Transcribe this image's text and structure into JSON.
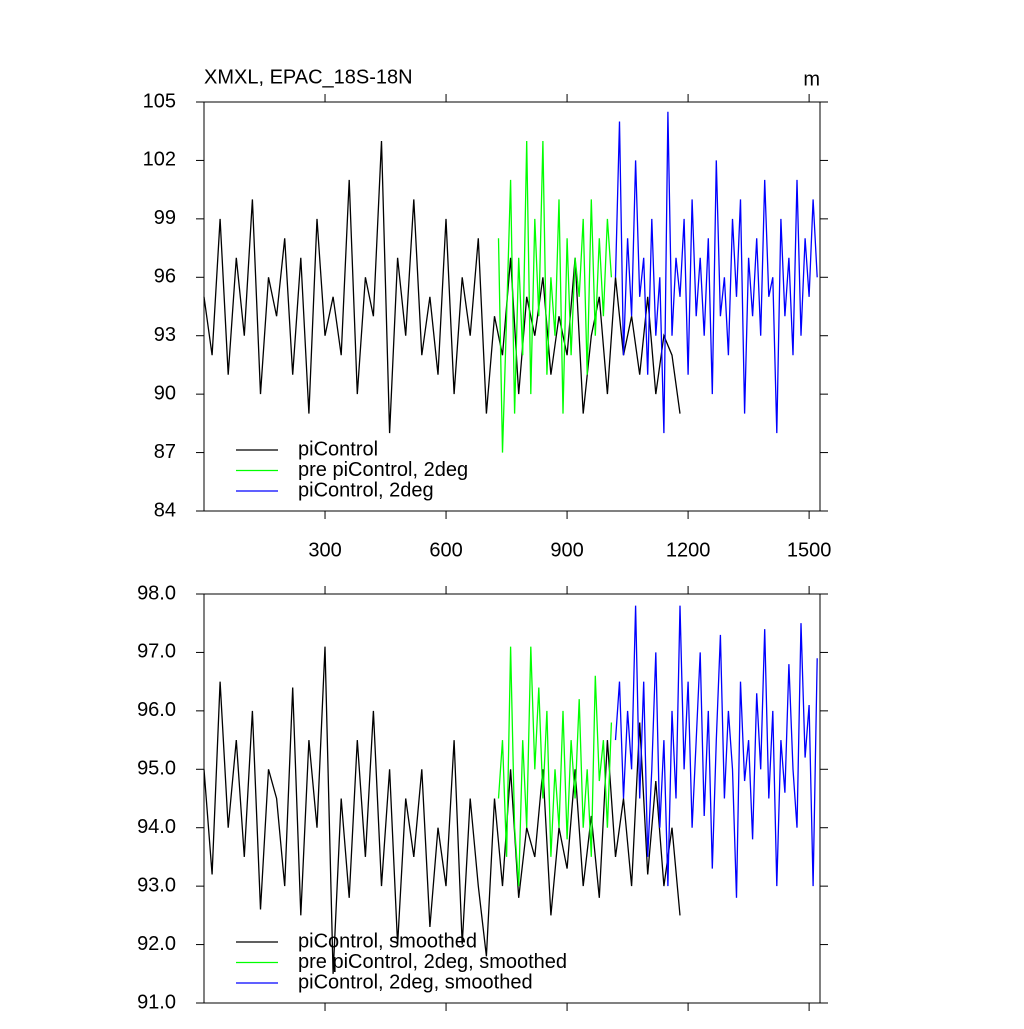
{
  "chart_data": [
    {
      "type": "line",
      "title": "XMXL, EPAC_18S-18N",
      "units_label": "m",
      "xlim": [
        0,
        1527
      ],
      "xticks": [
        300,
        600,
        900,
        1200,
        1500
      ],
      "ylim": [
        84,
        105
      ],
      "yticks": [
        84,
        87,
        90,
        93,
        96,
        99,
        102,
        105
      ],
      "series": [
        {
          "name": "piControl",
          "color": "#000000",
          "x": [
            0,
            20,
            40,
            60,
            80,
            100,
            120,
            140,
            160,
            180,
            200,
            220,
            240,
            260,
            280,
            300,
            320,
            340,
            360,
            380,
            400,
            420,
            440,
            460,
            480,
            500,
            520,
            540,
            560,
            580,
            600,
            620,
            640,
            660,
            680,
            700,
            720,
            740,
            760,
            780,
            800,
            820,
            840,
            860,
            880,
            900,
            920,
            940,
            960,
            980,
            1000,
            1020,
            1040,
            1060,
            1080,
            1100,
            1120,
            1140,
            1160,
            1180
          ],
          "values": [
            95,
            92,
            99,
            91,
            97,
            93,
            100,
            90,
            96,
            94,
            98,
            91,
            97,
            89,
            99,
            93,
            95,
            92,
            101,
            90,
            96,
            94,
            103,
            88,
            97,
            93,
            100,
            92,
            95,
            91,
            99,
            90,
            96,
            93,
            98,
            89,
            94,
            92,
            97,
            90,
            95,
            93,
            96,
            91,
            94,
            92,
            97,
            89,
            93,
            95,
            90,
            96,
            92,
            94,
            91,
            95,
            90,
            93,
            92,
            89
          ]
        },
        {
          "name": "pre piControl, 2deg",
          "color": "#00ff00",
          "x": [
            730,
            740,
            750,
            760,
            770,
            780,
            790,
            800,
            810,
            820,
            830,
            840,
            850,
            860,
            870,
            880,
            890,
            900,
            910,
            920,
            930,
            940,
            950,
            960,
            970,
            980,
            990,
            1000,
            1010
          ],
          "values": [
            98,
            87,
            94,
            101,
            89,
            97,
            92,
            103,
            90,
            99,
            94,
            103,
            91,
            96,
            93,
            100,
            89,
            98,
            92,
            97,
            95,
            99,
            91,
            100,
            93,
            98,
            94,
            99,
            96
          ]
        },
        {
          "name": "piControl, 2deg",
          "color": "#0000ff",
          "x": [
            1020,
            1030,
            1040,
            1050,
            1060,
            1070,
            1080,
            1090,
            1100,
            1110,
            1120,
            1130,
            1140,
            1150,
            1160,
            1170,
            1180,
            1190,
            1200,
            1210,
            1220,
            1230,
            1240,
            1250,
            1260,
            1270,
            1280,
            1290,
            1300,
            1310,
            1320,
            1330,
            1340,
            1350,
            1360,
            1370,
            1380,
            1390,
            1400,
            1410,
            1420,
            1430,
            1440,
            1450,
            1460,
            1470,
            1480,
            1490,
            1500,
            1510,
            1520
          ],
          "values": [
            96,
            104,
            92,
            98,
            94,
            102,
            95,
            97,
            91,
            99,
            93,
            96,
            88,
            104.5,
            93,
            97,
            95,
            99,
            91,
            100,
            94,
            97,
            93,
            98,
            90,
            102,
            94,
            96,
            92,
            99,
            95,
            100,
            89,
            97,
            94,
            98,
            93,
            101,
            95,
            96,
            88,
            99,
            94,
            97,
            92,
            101,
            93,
            98,
            95,
            100,
            96
          ]
        }
      ]
    },
    {
      "type": "line",
      "xlim": [
        0,
        1527
      ],
      "xticks": [
        300,
        600,
        900,
        1200,
        1500
      ],
      "ylim": [
        91,
        98
      ],
      "yticks": [
        {
          "value": 91,
          "label": "91.0"
        },
        {
          "value": 92,
          "label": "92.0"
        },
        {
          "value": 93,
          "label": "93.0"
        },
        {
          "value": 94,
          "label": "94.0"
        },
        {
          "value": 95,
          "label": "95.0"
        },
        {
          "value": 96,
          "label": "96.0"
        },
        {
          "value": 97,
          "label": "97.0"
        },
        {
          "value": 98,
          "label": "98.0"
        }
      ],
      "series": [
        {
          "name": "piControl, smoothed",
          "color": "#000000",
          "x": [
            0,
            20,
            40,
            60,
            80,
            100,
            120,
            140,
            160,
            180,
            200,
            220,
            240,
            260,
            280,
            300,
            320,
            340,
            360,
            380,
            400,
            420,
            440,
            460,
            480,
            500,
            520,
            540,
            560,
            580,
            600,
            620,
            640,
            660,
            680,
            700,
            720,
            740,
            760,
            780,
            800,
            820,
            840,
            860,
            880,
            900,
            920,
            940,
            960,
            980,
            1000,
            1020,
            1040,
            1060,
            1080,
            1100,
            1120,
            1140,
            1160,
            1180
          ],
          "values": [
            95,
            93.2,
            96.5,
            94,
            95.5,
            93.5,
            96,
            92.6,
            95,
            94.5,
            93,
            96.4,
            92.5,
            95.5,
            94,
            97.1,
            91.5,
            94.5,
            92.8,
            95.5,
            93.5,
            96,
            93,
            95,
            92,
            94.5,
            93.5,
            95,
            92.3,
            94,
            93,
            95.5,
            92,
            94.5,
            93,
            91.8,
            94.5,
            93,
            95,
            92.8,
            94,
            93.5,
            95,
            92.5,
            94,
            93.3,
            95,
            93,
            94.2,
            92.8,
            95.5,
            93.5,
            94.5,
            93,
            95.8,
            93.2,
            94.8,
            93,
            94,
            92.5
          ]
        },
        {
          "name": "pre piControl, 2deg, smoothed",
          "color": "#00ff00",
          "x": [
            730,
            740,
            750,
            760,
            770,
            780,
            790,
            800,
            810,
            820,
            830,
            840,
            850,
            860,
            870,
            880,
            890,
            900,
            910,
            920,
            930,
            940,
            950,
            960,
            970,
            980,
            990,
            1000,
            1010
          ],
          "values": [
            94.5,
            95.5,
            93.5,
            97.1,
            94,
            93,
            95.5,
            94,
            97.1,
            95,
            96.4,
            94.5,
            96,
            93.5,
            95,
            94,
            96,
            93.8,
            95.5,
            94.5,
            96.2,
            94,
            95,
            93.5,
            96.6,
            94.8,
            95.5,
            94,
            95.8
          ]
        },
        {
          "name": "piControl, 2deg, smoothed",
          "color": "#0000ff",
          "x": [
            1020,
            1030,
            1040,
            1050,
            1060,
            1070,
            1080,
            1090,
            1100,
            1110,
            1120,
            1130,
            1140,
            1150,
            1160,
            1170,
            1180,
            1190,
            1200,
            1210,
            1220,
            1230,
            1240,
            1250,
            1260,
            1270,
            1280,
            1290,
            1300,
            1310,
            1320,
            1330,
            1340,
            1350,
            1360,
            1370,
            1380,
            1390,
            1400,
            1410,
            1420,
            1430,
            1440,
            1450,
            1460,
            1470,
            1480,
            1490,
            1500,
            1510,
            1520
          ],
          "values": [
            95.5,
            96.5,
            94.5,
            96,
            95,
            97.8,
            94.5,
            96.5,
            93.5,
            95,
            97,
            94,
            95.5,
            93,
            96,
            94.5,
            97.8,
            95,
            96.5,
            94,
            95.5,
            97,
            94.2,
            96,
            93.3,
            95.5,
            97.3,
            94.5,
            96,
            95,
            92.8,
            96.5,
            94.8,
            95.5,
            93.8,
            96.3,
            95,
            97.4,
            94.5,
            96,
            93,
            95.5,
            94.6,
            96.8,
            95,
            94,
            97.5,
            95.2,
            96.1,
            93,
            96.9
          ]
        }
      ]
    }
  ]
}
